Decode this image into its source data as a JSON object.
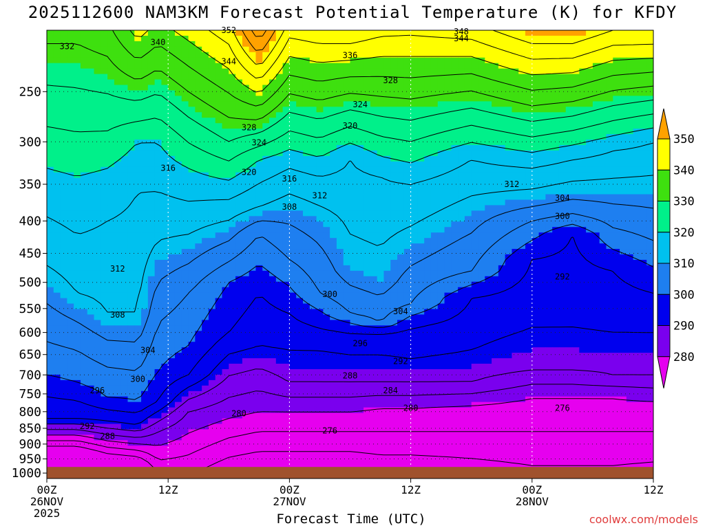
{
  "page": {
    "title": "2025112600 NAM3KM Forecast Potential Temperature (K) for KFDY",
    "credit": "coolwx.com/models"
  },
  "chart_data": {
    "type": "heatmap",
    "title": "2025112600 NAM3KM Forecast Potential Temperature (K) for KFDY",
    "xlabel": "Forecast Time (UTC)",
    "ylabel": "",
    "x_ticks": [
      {
        "hour": 0,
        "lines": [
          "00Z",
          "26NOV",
          "2025"
        ]
      },
      {
        "hour": 12,
        "lines": [
          "12Z"
        ]
      },
      {
        "hour": 24,
        "lines": [
          "00Z",
          "27NOV"
        ]
      },
      {
        "hour": 36,
        "lines": [
          "12Z"
        ]
      },
      {
        "hour": 48,
        "lines": [
          "00Z",
          "28NOV"
        ]
      },
      {
        "hour": 60,
        "lines": [
          "12Z"
        ]
      }
    ],
    "xlim_hours": [
      0,
      60
    ],
    "y_axis": "pressure (hPa), inverted, log",
    "y_ticks": [
      250,
      300,
      350,
      400,
      450,
      500,
      550,
      600,
      650,
      700,
      750,
      800,
      850,
      900,
      950,
      1000
    ],
    "ylim": [
      1020,
      200
    ],
    "contour_interval_K": 4,
    "fill_interval_K": 10,
    "colorbar": {
      "labels": [
        "350",
        "340",
        "330",
        "320",
        "310",
        "300",
        "290",
        "280"
      ],
      "colors": [
        "#ffa200",
        "#ffff00",
        "#3ee00f",
        "#00f08a",
        "#00c1ef",
        "#1e7ff0",
        "#0000ee",
        "#7a00ee",
        "#e600ef"
      ]
    },
    "ground_color": "#a0522d",
    "surface_pressure_hPa": 978,
    "columns": [
      {
        "hour": 0,
        "theta": [
          [
            880,
            278
          ],
          [
            820,
            292
          ],
          [
            700,
            300
          ],
          [
            620,
            304
          ],
          [
            470,
            312
          ],
          [
            330,
            320
          ],
          [
            210,
            332
          ]
        ]
      },
      {
        "hour": 3,
        "theta": [
          [
            880,
            278
          ],
          [
            820,
            292
          ],
          [
            720,
            300
          ],
          [
            640,
            304
          ],
          [
            520,
            312
          ],
          [
            340,
            320
          ],
          [
            210,
            332
          ]
        ]
      },
      {
        "hour": 6,
        "theta": [
          [
            900,
            278
          ],
          [
            830,
            292
          ],
          [
            760,
            300
          ],
          [
            680,
            304
          ],
          [
            560,
            312
          ],
          [
            400,
            316
          ],
          [
            330,
            320
          ],
          [
            220,
            332
          ]
        ]
      },
      {
        "hour": 9,
        "theta": [
          [
            910,
            278
          ],
          [
            840,
            292
          ],
          [
            770,
            300
          ],
          [
            690,
            304
          ],
          [
            560,
            312
          ],
          [
            360,
            316
          ],
          [
            300,
            320
          ],
          [
            240,
            332
          ]
        ]
      },
      {
        "hour": 11,
        "theta": [
          [
            930,
            278
          ],
          [
            860,
            284
          ],
          [
            770,
            296
          ],
          [
            690,
            300
          ],
          [
            580,
            304
          ],
          [
            430,
            312
          ],
          [
            300,
            320
          ],
          [
            230,
            332
          ]
        ]
      },
      {
        "hour": 14,
        "theta": [
          [
            900,
            278
          ],
          [
            800,
            284
          ],
          [
            700,
            296
          ],
          [
            630,
            300
          ],
          [
            520,
            304
          ],
          [
            420,
            312
          ],
          [
            330,
            320
          ],
          [
            250,
            332
          ]
        ]
      },
      {
        "hour": 18,
        "theta": [
          [
            880,
            276
          ],
          [
            820,
            280
          ],
          [
            760,
            284
          ],
          [
            600,
            296
          ],
          [
            500,
            300
          ],
          [
            430,
            308
          ],
          [
            370,
            316
          ],
          [
            300,
            328
          ],
          [
            230,
            340
          ]
        ]
      },
      {
        "hour": 21,
        "theta": [
          [
            860,
            276
          ],
          [
            800,
            280
          ],
          [
            740,
            284
          ],
          [
            630,
            292
          ],
          [
            520,
            296
          ],
          [
            420,
            304
          ],
          [
            380,
            312
          ],
          [
            320,
            320
          ],
          [
            240,
            344
          ]
        ]
      },
      {
        "hour": 24,
        "theta": [
          [
            860,
            276
          ],
          [
            800,
            280
          ],
          [
            720,
            288
          ],
          [
            640,
            292
          ],
          [
            560,
            296
          ],
          [
            460,
            304
          ],
          [
            380,
            310
          ],
          [
            330,
            316
          ],
          [
            220,
            340
          ]
        ]
      },
      {
        "hour": 27,
        "theta": [
          [
            860,
            276
          ],
          [
            800,
            280
          ],
          [
            720,
            288
          ],
          [
            640,
            292
          ],
          [
            590,
            296
          ],
          [
            520,
            304
          ],
          [
            400,
            310
          ],
          [
            340,
            316
          ],
          [
            210,
            344
          ]
        ]
      },
      {
        "hour": 30,
        "theta": [
          [
            860,
            276
          ],
          [
            800,
            280
          ],
          [
            720,
            288
          ],
          [
            650,
            292
          ],
          [
            600,
            296
          ],
          [
            560,
            304
          ],
          [
            480,
            310
          ],
          [
            320,
            316
          ],
          [
            210,
            344
          ]
        ]
      },
      {
        "hour": 33,
        "theta": [
          [
            860,
            276
          ],
          [
            790,
            280
          ],
          [
            720,
            288
          ],
          [
            650,
            292
          ],
          [
            600,
            296
          ],
          [
            580,
            304
          ],
          [
            500,
            310
          ],
          [
            340,
            316
          ],
          [
            220,
            340
          ]
        ]
      },
      {
        "hour": 36,
        "theta": [
          [
            860,
            276
          ],
          [
            790,
            280
          ],
          [
            720,
            288
          ],
          [
            660,
            292
          ],
          [
            590,
            296
          ],
          [
            540,
            304
          ],
          [
            440,
            310
          ],
          [
            350,
            316
          ],
          [
            220,
            340
          ]
        ]
      },
      {
        "hour": 42,
        "theta": [
          [
            860,
            276
          ],
          [
            780,
            280
          ],
          [
            720,
            288
          ],
          [
            640,
            292
          ],
          [
            530,
            296
          ],
          [
            480,
            304
          ],
          [
            390,
            310
          ],
          [
            320,
            316
          ],
          [
            220,
            340
          ]
        ]
      },
      {
        "hour": 48,
        "theta": [
          [
            860,
            276
          ],
          [
            760,
            280
          ],
          [
            690,
            288
          ],
          [
            590,
            292
          ],
          [
            460,
            296
          ],
          [
            400,
            304
          ],
          [
            370,
            310
          ],
          [
            330,
            316
          ],
          [
            210,
            348
          ]
        ]
      },
      {
        "hour": 52,
        "theta": [
          [
            860,
            276
          ],
          [
            760,
            280
          ],
          [
            690,
            288
          ],
          [
            590,
            292
          ],
          [
            420,
            296
          ],
          [
            390,
            304
          ],
          [
            360,
            310
          ],
          [
            320,
            316
          ],
          [
            210,
            348
          ]
        ]
      },
      {
        "hour": 56,
        "theta": [
          [
            860,
            276
          ],
          [
            760,
            280
          ],
          [
            700,
            288
          ],
          [
            600,
            292
          ],
          [
            480,
            296
          ],
          [
            410,
            304
          ],
          [
            360,
            310
          ],
          [
            310,
            316
          ],
          [
            200,
            348
          ]
        ]
      },
      {
        "hour": 60,
        "theta": [
          [
            860,
            276
          ],
          [
            770,
            280
          ],
          [
            700,
            288
          ],
          [
            600,
            292
          ],
          [
            520,
            296
          ],
          [
            430,
            304
          ],
          [
            360,
            310
          ],
          [
            300,
            316
          ],
          [
            200,
            348
          ]
        ]
      }
    ],
    "contour_labels": [
      {
        "hour": 2,
        "p": 212,
        "text": "332"
      },
      {
        "hour": 11,
        "p": 209,
        "text": "340"
      },
      {
        "hour": 18,
        "p": 200,
        "text": "352"
      },
      {
        "hour": 18,
        "p": 224,
        "text": "344"
      },
      {
        "hour": 20,
        "p": 285,
        "text": "328"
      },
      {
        "hour": 21,
        "p": 301,
        "text": "324"
      },
      {
        "hour": 20,
        "p": 335,
        "text": "320"
      },
      {
        "hour": 12,
        "p": 330,
        "text": "316"
      },
      {
        "hour": 30,
        "p": 219,
        "text": "336"
      },
      {
        "hour": 41,
        "p": 201,
        "text": "348"
      },
      {
        "hour": 41,
        "p": 206,
        "text": "344"
      },
      {
        "hour": 34,
        "p": 240,
        "text": "328"
      },
      {
        "hour": 31,
        "p": 262,
        "text": "324"
      },
      {
        "hour": 30,
        "p": 283,
        "text": "320"
      },
      {
        "hour": 24,
        "p": 343,
        "text": "316"
      },
      {
        "hour": 27,
        "p": 365,
        "text": "312"
      },
      {
        "hour": 24,
        "p": 380,
        "text": "308"
      },
      {
        "hour": 46,
        "p": 350,
        "text": "312"
      },
      {
        "hour": 51,
        "p": 368,
        "text": "304"
      },
      {
        "hour": 51,
        "p": 393,
        "text": "300"
      },
      {
        "hour": 51,
        "p": 490,
        "text": "292"
      },
      {
        "hour": 7,
        "p": 476,
        "text": "312"
      },
      {
        "hour": 7,
        "p": 563,
        "text": "308"
      },
      {
        "hour": 10,
        "p": 640,
        "text": "304"
      },
      {
        "hour": 9,
        "p": 711,
        "text": "300"
      },
      {
        "hour": 5,
        "p": 741,
        "text": "296"
      },
      {
        "hour": 4,
        "p": 844,
        "text": "292"
      },
      {
        "hour": 6,
        "p": 875,
        "text": "288"
      },
      {
        "hour": 19,
        "p": 805,
        "text": "280"
      },
      {
        "hour": 28,
        "p": 522,
        "text": "300"
      },
      {
        "hour": 35,
        "p": 556,
        "text": "304"
      },
      {
        "hour": 31,
        "p": 624,
        "text": "296"
      },
      {
        "hour": 35,
        "p": 666,
        "text": "292"
      },
      {
        "hour": 30,
        "p": 702,
        "text": "288"
      },
      {
        "hour": 34,
        "p": 741,
        "text": "284"
      },
      {
        "hour": 36,
        "p": 790,
        "text": "280"
      },
      {
        "hour": 51,
        "p": 790,
        "text": "276"
      },
      {
        "hour": 28,
        "p": 857,
        "text": "276"
      }
    ]
  }
}
